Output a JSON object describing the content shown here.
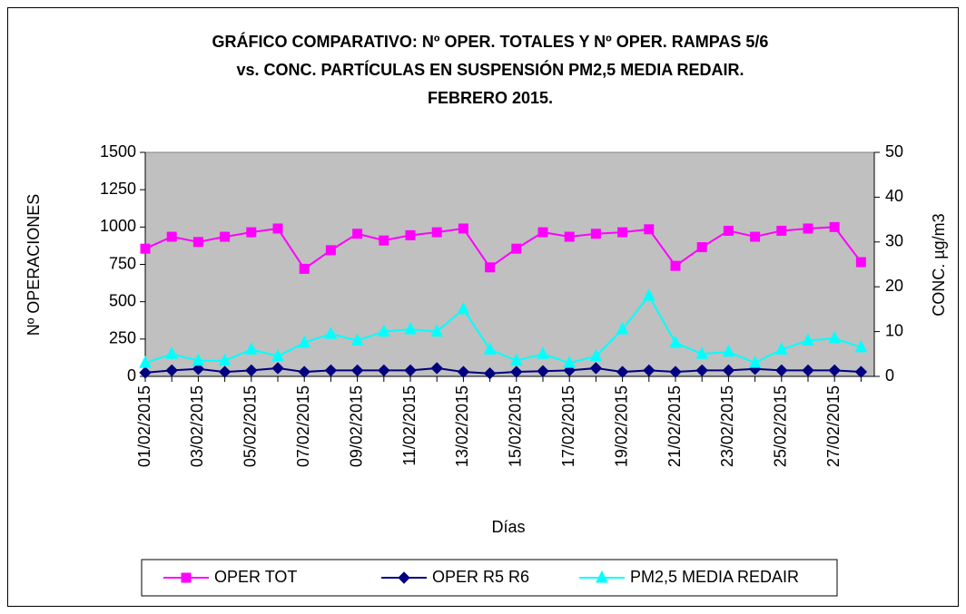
{
  "chart_data": {
    "type": "line",
    "title": [
      "GRÁFICO COMPARATIVO: Nº OPER. TOTALES Y Nº OPER. RAMPAS 5/6",
      "vs. CONC. PARTÍCULAS EN SUSPENSIÓN PM2,5 MEDIA REDAIR.",
      "FEBRERO 2015."
    ],
    "x_label": "Días",
    "y_label": "Nº OPERACIONES",
    "y2_label": "CONC. µg/m3",
    "categories": [
      "01/02/2015",
      null,
      "03/02/2015",
      null,
      "05/02/2015",
      null,
      "07/02/2015",
      null,
      "09/02/2015",
      null,
      "11/02/2015",
      null,
      "13/02/2015",
      null,
      "15/02/2015",
      null,
      "17/02/2015",
      null,
      "19/02/2015",
      null,
      "21/02/2015",
      null,
      "23/02/2015",
      null,
      "25/02/2015",
      null,
      "27/02/2015",
      null
    ],
    "ylim": [
      0,
      1500
    ],
    "yticks": [
      0,
      250,
      500,
      750,
      1000,
      1250,
      1500
    ],
    "y2lim": [
      0,
      50
    ],
    "y2ticks": [
      0,
      10,
      20,
      30,
      40,
      50
    ],
    "grid": false,
    "legend": "bottom",
    "background": "#c0c0c0",
    "series": [
      {
        "name": "OPER TOT",
        "color": "#ff00ff",
        "marker": "square",
        "values": [
          855,
          935,
          900,
          935,
          965,
          990,
          720,
          845,
          955,
          910,
          945,
          965,
          990,
          730,
          855,
          965,
          935,
          955,
          965,
          985,
          740,
          865,
          975,
          935,
          975,
          990,
          1000,
          765
        ]
      },
      {
        "name": "OPER R5 R6",
        "color": "#000080",
        "marker": "diamond",
        "values": [
          25,
          40,
          50,
          30,
          40,
          55,
          30,
          40,
          40,
          40,
          40,
          55,
          30,
          20,
          30,
          35,
          40,
          55,
          30,
          40,
          30,
          40,
          40,
          50,
          40,
          40,
          40,
          30
        ]
      },
      {
        "name": "PM2,5 MEDIA REDAIR",
        "color": "#00ffff",
        "marker": "triangle",
        "axis": "y2",
        "values": [
          3,
          5,
          3.5,
          3.5,
          6,
          4.5,
          7.5,
          9.5,
          8,
          10,
          10.5,
          10,
          15,
          6,
          3.5,
          5,
          3,
          4.5,
          10.5,
          18,
          7.5,
          5,
          5.5,
          3,
          6,
          8,
          8.5,
          6.5
        ]
      }
    ]
  }
}
